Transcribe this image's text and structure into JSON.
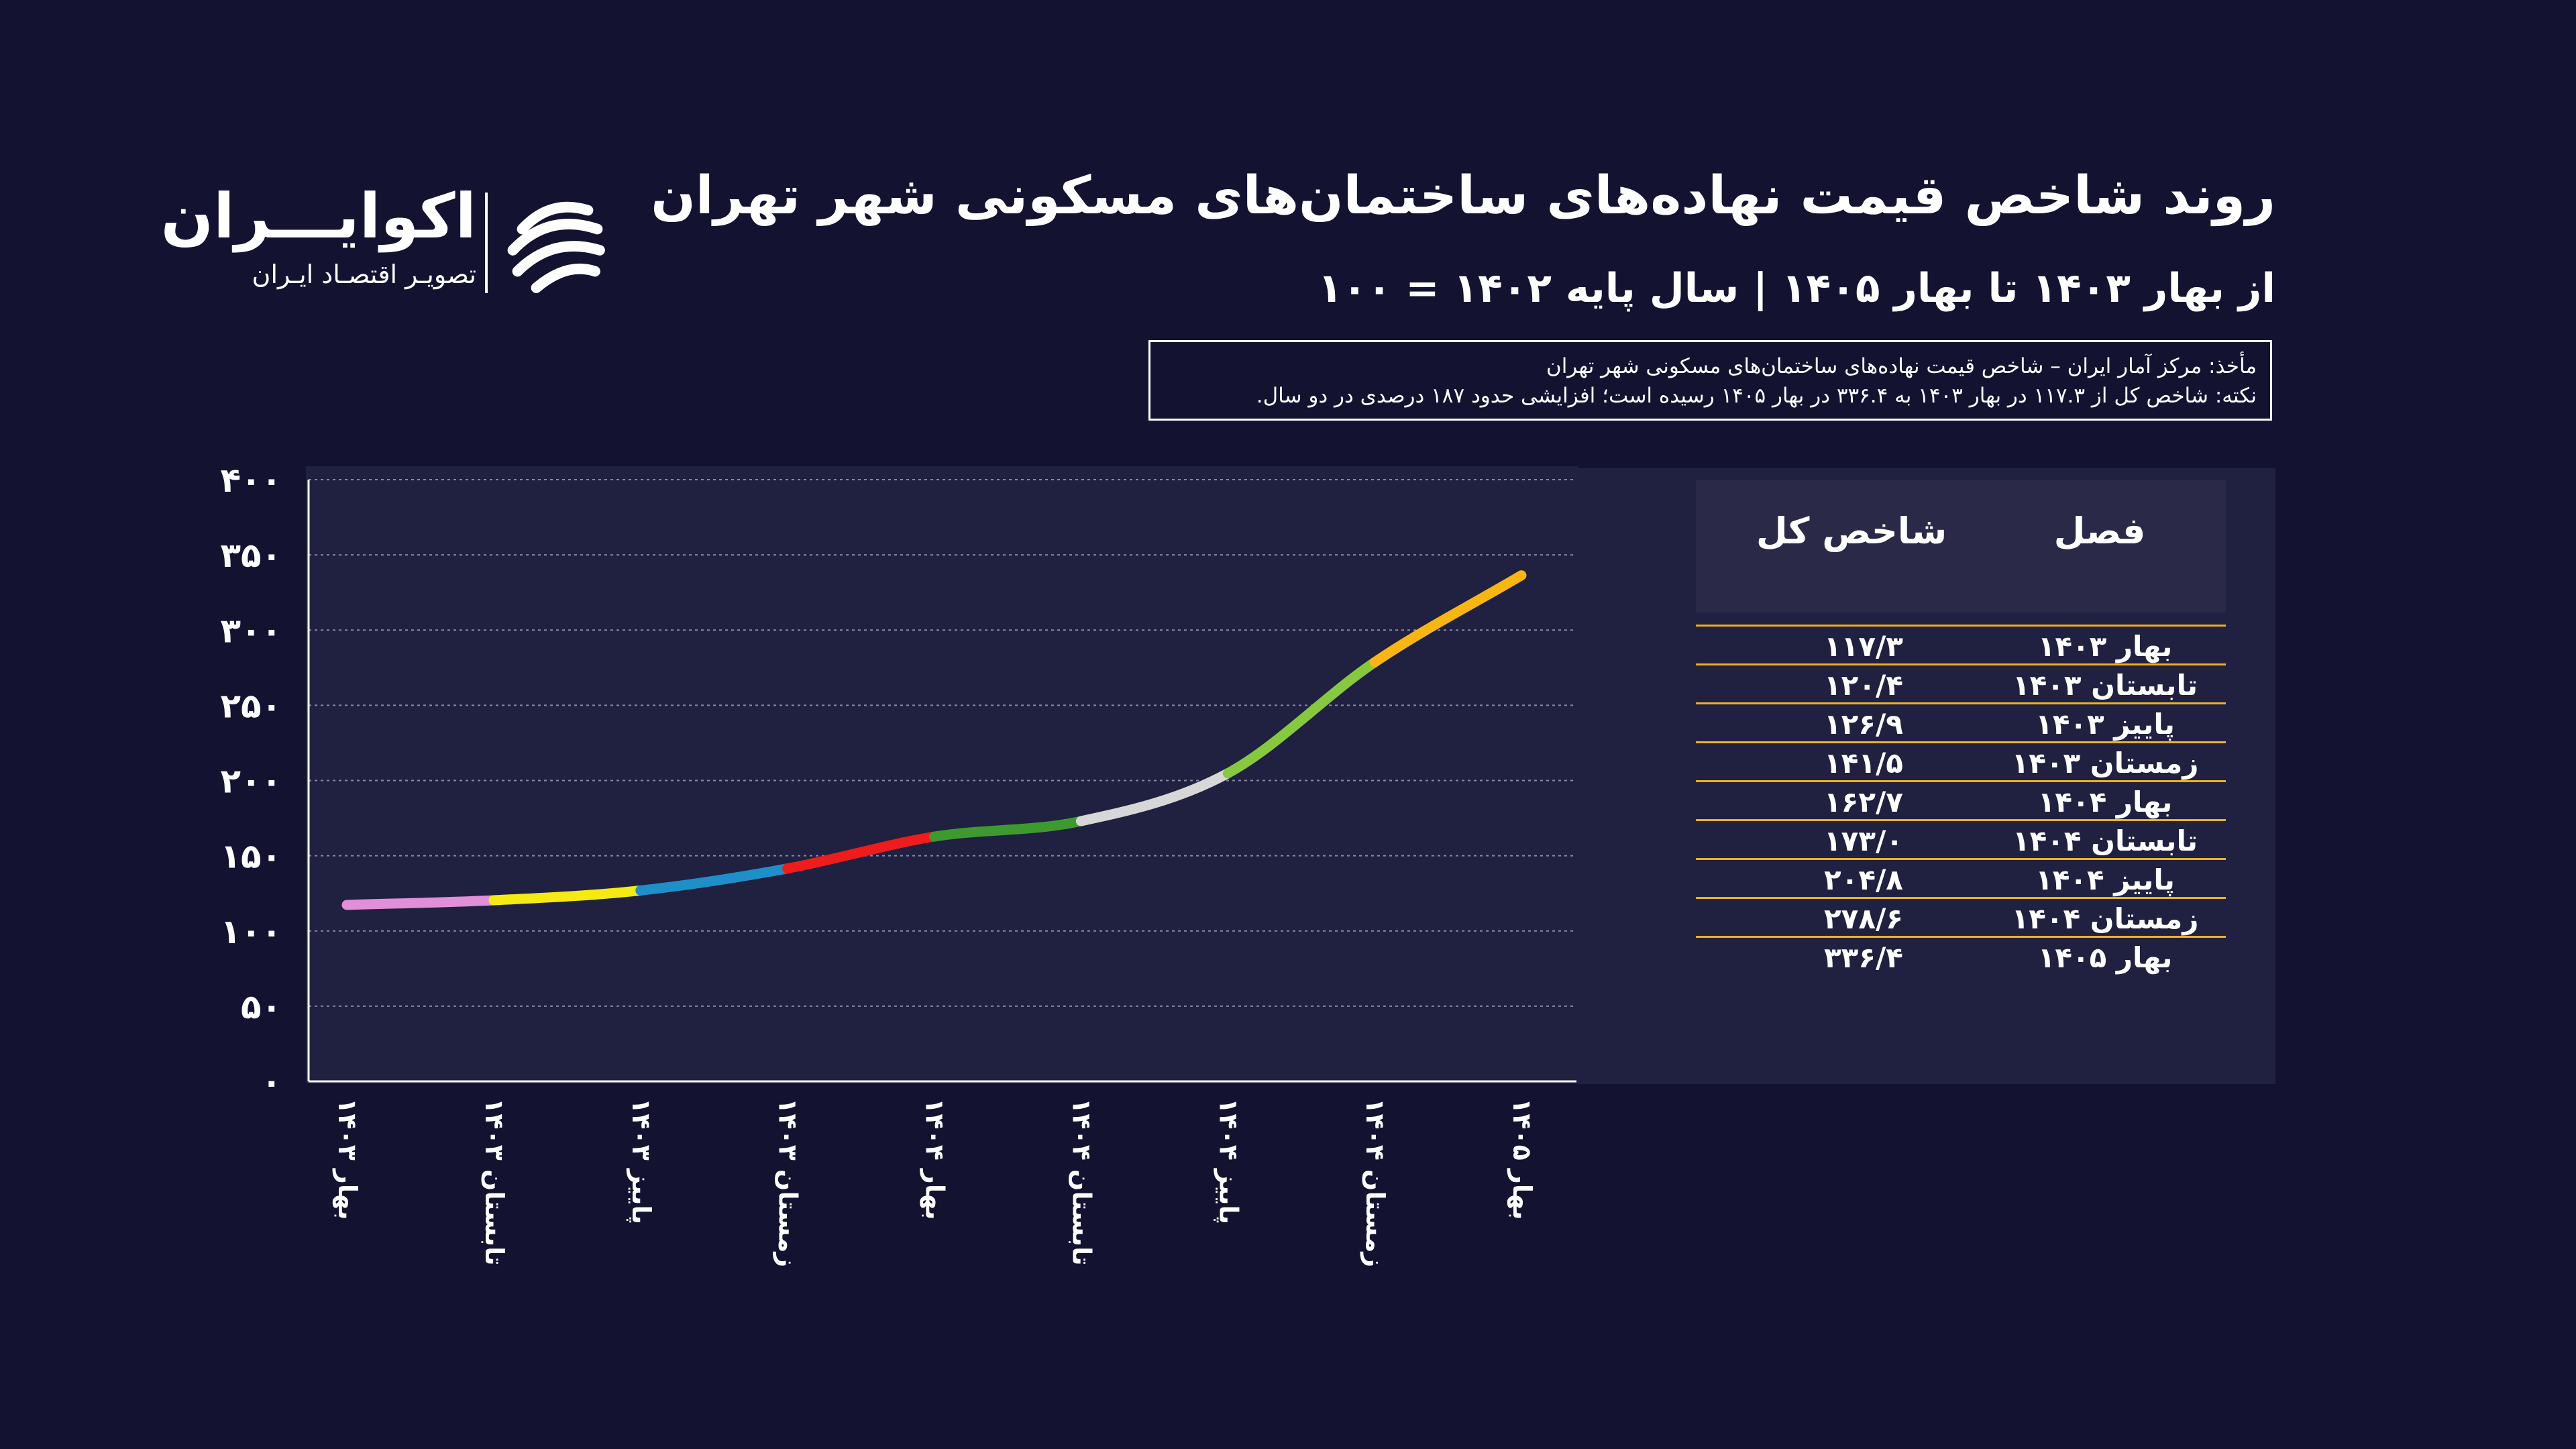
{
  "header": {
    "title": "روند شاخص قیمت نهاده‌های ساختمان‌های مسکونی شهر تهران",
    "subtitle": "از بهار ۱۴۰۳ تا بهار ۱۴۰۵ | سال پایه ۱۴۰۲ = ۱۰۰"
  },
  "logo": {
    "name": "اکوایـــران",
    "tagline": "تصویـر اقتصـاد ایـران",
    "icon": "ecoiran-logo-icon"
  },
  "notes": {
    "source": "مأخذ: مرکز آمار ایران – شاخص قیمت نهاده‌های ساختمان‌های مسکونی شهر تهران",
    "note": "نکته: شاخص کل از ۱۱۷.۳ در بهار ۱۴۰۳ به ۳۳۶.۴ در بهار ۱۴۰۵ رسیده است؛ افزایشی حدود ۱۸۷ درصدی در دو سال."
  },
  "table": {
    "headers": {
      "season": "فصل",
      "index": "شاخص کل"
    },
    "rows": [
      {
        "season": "بهار ۱۴۰۳",
        "index": "۱۱۷/۳"
      },
      {
        "season": "تابستان ۱۴۰۳",
        "index": "۱۲۰/۴"
      },
      {
        "season": "پاییز ۱۴۰۳",
        "index": "۱۲۶/۹"
      },
      {
        "season": "زمستان ۱۴۰۳",
        "index": "۱۴۱/۵"
      },
      {
        "season": "بهار ۱۴۰۴",
        "index": "۱۶۲/۷"
      },
      {
        "season": "تابستان ۱۴۰۴",
        "index": "۱۷۳/۰"
      },
      {
        "season": "پاییز ۱۴۰۴",
        "index": "۲۰۴/۸"
      },
      {
        "season": "زمستان ۱۴۰۴",
        "index": "۲۷۸/۶"
      },
      {
        "season": "بهار ۱۴۰۵",
        "index": "۳۳۶/۴"
      }
    ],
    "rule_color": "#f2b01e"
  },
  "chart_data": {
    "type": "line",
    "categories": [
      "بهار ۱۴۰۳",
      "تابستان ۱۴۰۳",
      "پاییز ۱۴۰۳",
      "زمستان ۱۴۰۳",
      "بهار ۱۴۰۴",
      "تابستان ۱۴۰۴",
      "پاییز ۱۴۰۴",
      "زمستان ۱۴۰۴",
      "بهار ۱۴۰۵"
    ],
    "values": [
      117.3,
      120.4,
      126.9,
      141.5,
      162.7,
      173.0,
      204.8,
      278.6,
      336.4
    ],
    "ylim": [
      0,
      400
    ],
    "yticks": [
      0,
      50,
      100,
      150,
      200,
      250,
      300,
      350,
      400
    ],
    "ytick_labels": [
      "۰",
      "۵۰",
      "۱۰۰",
      "۱۵۰",
      "۲۰۰",
      "۲۵۰",
      "۳۰۰",
      "۳۵۰",
      "۴۰۰"
    ],
    "segment_colors": [
      "#e08fd8",
      "#f5ea14",
      "#1e8fc8",
      "#ee1c1c",
      "#3e9a2e",
      "#d7d7d7",
      "#86c940",
      "#f7b614"
    ],
    "grid": true,
    "legend": "none"
  }
}
